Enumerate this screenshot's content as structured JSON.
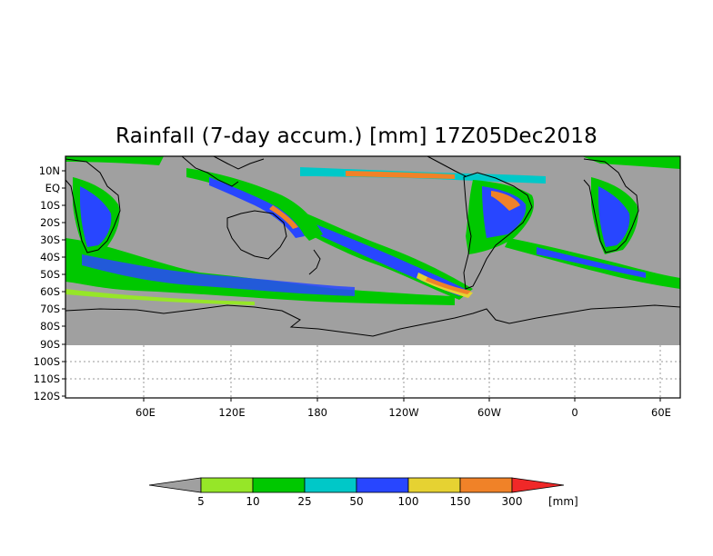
{
  "title": "Rainfall (7-day accum.) [mm] 17Z05Dec2018",
  "y_ticks": [
    "10N",
    "EQ",
    "10S",
    "20S",
    "30S",
    "40S",
    "50S",
    "60S",
    "70S",
    "80S",
    "90S",
    "100S",
    "110S",
    "120S"
  ],
  "x_ticks": [
    "60E",
    "120E",
    "180",
    "120W",
    "60W",
    "0",
    "60E"
  ],
  "colorbar": {
    "units": "[mm]",
    "under_color": "#a0a0a0",
    "over_color": "#f02828",
    "levels": [
      "5",
      "10",
      "25",
      "50",
      "100",
      "150",
      "300"
    ],
    "bins": [
      {
        "color": "#96e628"
      },
      {
        "color": "#00c800"
      },
      {
        "color": "#00c8c8"
      },
      {
        "color": "#2846ff"
      },
      {
        "color": "#e6d232"
      },
      {
        "color": "#f08228"
      }
    ]
  },
  "colors": {
    "no_rain": "#a0a0a0",
    "coastline": "#000000",
    "grid": "#9a9a9a"
  }
}
